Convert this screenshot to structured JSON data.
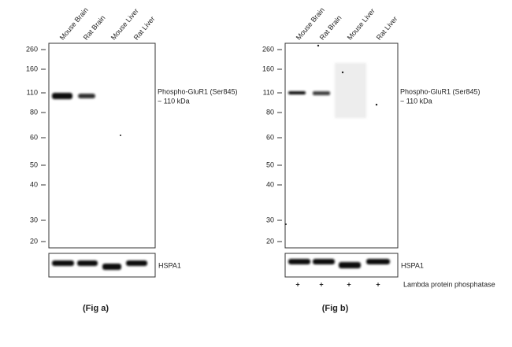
{
  "panels": [
    {
      "lanes": [
        "Mouse Brain",
        "Rat Brain",
        "Mouse Liver",
        "Rat Liver"
      ],
      "markers": [
        "260",
        "160",
        "110",
        "80",
        "60",
        "50",
        "40",
        "30",
        "20"
      ],
      "target_label": "Phospho-GluR1 (Ser845)",
      "target_size": "~ 110 kDa",
      "loading_control": "HSPA1",
      "caption": "(Fig a)"
    },
    {
      "lanes": [
        "Mouse Brain",
        "Rat Brain",
        "Mouse Liver",
        "Rat Liver"
      ],
      "markers": [
        "260",
        "160",
        "110",
        "80",
        "60",
        "50",
        "40",
        "30",
        "20"
      ],
      "target_label": "Phospho-GluR1 (Ser845)",
      "target_size": "~ 110 kDa",
      "loading_control": "HSPA1",
      "treatment_marks": [
        "+",
        "+",
        "+",
        "+"
      ],
      "treatment_label": "Lambda protein phosphatase",
      "caption": "(Fig b)"
    }
  ]
}
